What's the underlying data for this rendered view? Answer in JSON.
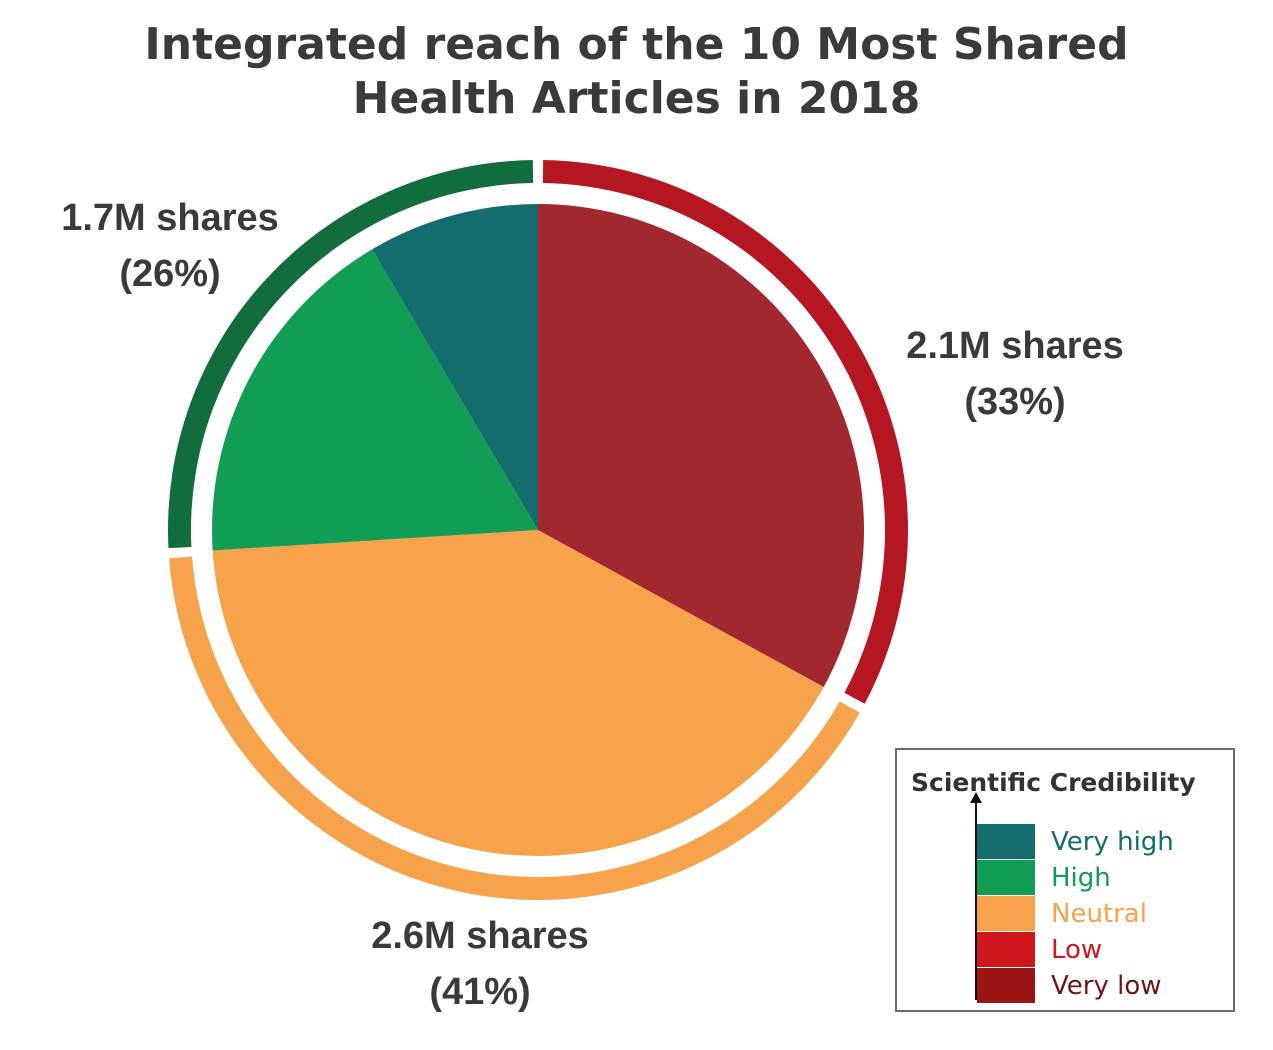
{
  "title_lines": [
    "Integrated reach of the 10 Most Shared",
    "Health Articles in 2018"
  ],
  "chart_data": {
    "type": "pie",
    "title": "Integrated reach of the 10 Most Shared Health Articles in 2018",
    "slices": [
      {
        "category": "Very low",
        "value": 33.0,
        "color": "#a0282e"
      },
      {
        "category": "Neutral",
        "value": 41.0,
        "color": "#f6a34b"
      },
      {
        "category": "High",
        "value": 17.5,
        "color": "#129d54"
      },
      {
        "category": "Very high",
        "value": 8.5,
        "color": "#136d6c"
      }
    ],
    "outer_groups": [
      {
        "label_line1": "2.1M shares",
        "label_line2": "(33%)",
        "percent": 33,
        "color": "#b51722"
      },
      {
        "label_line1": "2.6M shares",
        "label_line2": "(41%)",
        "percent": 41,
        "color": "#f6a34b"
      },
      {
        "label_line1": "1.7M shares",
        "label_line2": "(26%)",
        "percent": 26,
        "color": "#126d3e"
      }
    ],
    "legend": {
      "title": "Scientific Credibility",
      "placement": "bottom-right",
      "items": [
        {
          "label": "Very high",
          "color": "#136d6c",
          "text_color": "#136d6c"
        },
        {
          "label": "High",
          "color": "#129d54",
          "text_color": "#129d54"
        },
        {
          "label": "Neutral",
          "color": "#f6a34b",
          "text_color": "#f6a34b"
        },
        {
          "label": "Low",
          "color": "#d0171e",
          "text_color": "#d0171e"
        },
        {
          "label": "Very low",
          "color": "#9c1515",
          "text_color": "#6e1515"
        }
      ]
    }
  }
}
